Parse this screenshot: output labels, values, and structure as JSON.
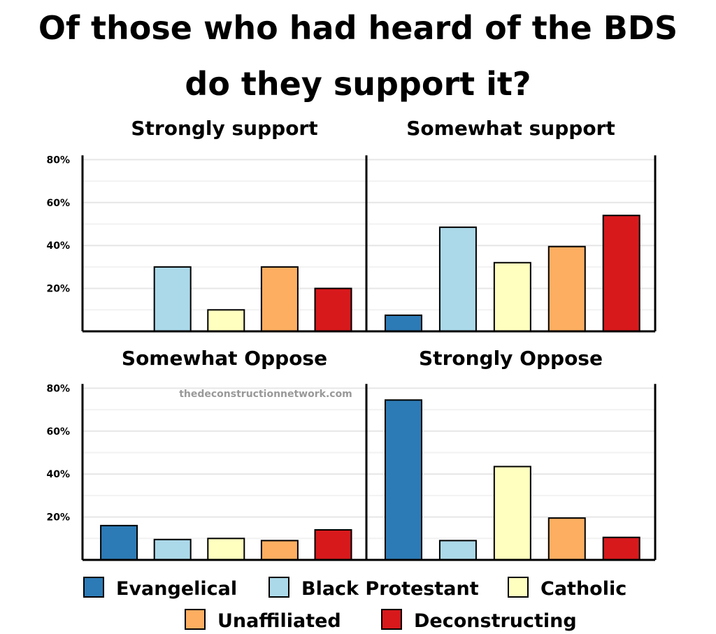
{
  "chart_data": {
    "type": "bar",
    "title": "Of those who had heard of the BDS do they support it?",
    "title_lines": [
      "Of those who had heard of the BDS",
      "do they support it?"
    ],
    "watermark": "thedeconstructionnetwork.com",
    "ylim": [
      0,
      80
    ],
    "yticks": [
      20,
      40,
      60,
      80
    ],
    "ytick_labels": [
      "20%",
      "40%",
      "60%",
      "80%"
    ],
    "grid": true,
    "legend_position": "bottom",
    "series": [
      {
        "name": "Evangelical",
        "color": "#2c7bb6"
      },
      {
        "name": "Black Protestant",
        "color": "#abd9e9"
      },
      {
        "name": "Catholic",
        "color": "#ffffbf"
      },
      {
        "name": "Unaffiliated",
        "color": "#fdae61"
      },
      {
        "name": "Deconstructing",
        "color": "#d7191c"
      }
    ],
    "panels": [
      {
        "title": "Strongly support",
        "values": [
          0,
          30,
          10,
          30,
          20
        ]
      },
      {
        "title": "Somewhat support",
        "values": [
          7.5,
          48.5,
          32,
          39.5,
          54
        ]
      },
      {
        "title": "Somewhat Oppose",
        "values": [
          16,
          9.5,
          10,
          9,
          14
        ]
      },
      {
        "title": "Strongly Oppose",
        "values": [
          74.5,
          9,
          43.5,
          19.5,
          10.5
        ]
      }
    ]
  }
}
